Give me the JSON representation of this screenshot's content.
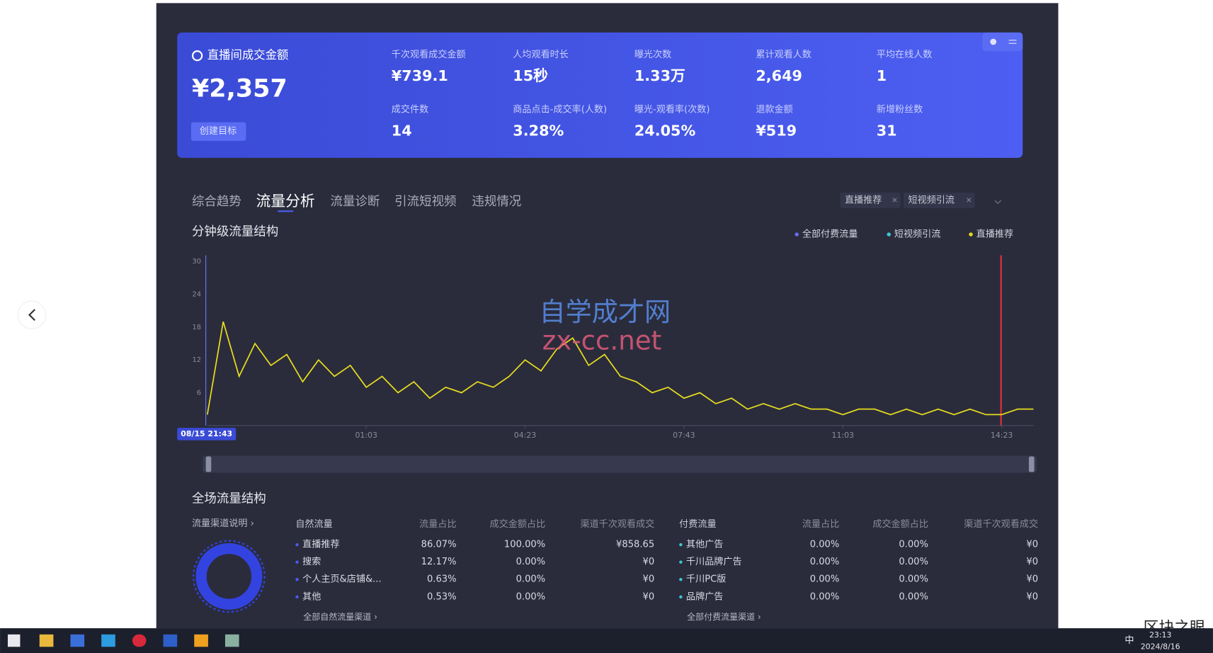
{
  "summary": {
    "title": "直播间成交金额",
    "value": "¥2,357",
    "button": "创建目标",
    "metrics": [
      {
        "label": "千次观看成交金额",
        "value": "¥739.1"
      },
      {
        "label": "人均观看时长",
        "value": "15秒"
      },
      {
        "label": "曝光次数",
        "value": "1.33万"
      },
      {
        "label": "累计观看人数",
        "value": "2,649"
      },
      {
        "label": "平均在线人数",
        "value": "1"
      },
      {
        "label": "成交件数",
        "value": "14"
      },
      {
        "label": "商品点击-成交率(人数)",
        "value": "3.28%"
      },
      {
        "label": "曝光-观看率(次数)",
        "value": "24.05%"
      },
      {
        "label": "退款金额",
        "value": "¥519"
      },
      {
        "label": "新增粉丝数",
        "value": "31"
      }
    ]
  },
  "tabs": [
    "综合趋势",
    "流量分析",
    "流量诊断",
    "引流短视频",
    "违规情况"
  ],
  "active_tab": 1,
  "filters": [
    "直播推荐",
    "短视频引流"
  ],
  "chart_data": {
    "type": "line",
    "title": "分钟级流量结构",
    "legend": [
      {
        "name": "全部付费流量",
        "color": "#6a6cf5"
      },
      {
        "name": "短视频引流",
        "color": "#3fc5d8"
      },
      {
        "name": "直播推荐",
        "color": "#e6dc1e"
      }
    ],
    "x": [
      0,
      20,
      40,
      60,
      80,
      100,
      120,
      140,
      160,
      180,
      200,
      220,
      240,
      260,
      280,
      300,
      320,
      340,
      360,
      380,
      400,
      420,
      440,
      460,
      480,
      500,
      520,
      540,
      560,
      580,
      600,
      620,
      640,
      660,
      680,
      700,
      720,
      740,
      760,
      780,
      800,
      820,
      840,
      860,
      880,
      900,
      920,
      940,
      960,
      980,
      1000,
      1020,
      1040
    ],
    "series": [
      {
        "name": "直播推荐",
        "color": "#e6dc1e",
        "values": [
          2,
          19,
          9,
          15,
          11,
          13,
          8,
          12,
          9,
          11,
          7,
          9,
          6,
          8,
          5,
          7,
          6,
          8,
          7,
          9,
          12,
          10,
          14,
          16,
          11,
          13,
          9,
          8,
          6,
          7,
          5,
          6,
          4,
          5,
          3,
          4,
          3,
          4,
          3,
          3,
          2,
          3,
          3,
          2,
          3,
          2,
          3,
          2,
          3,
          2,
          2,
          3,
          3
        ]
      }
    ],
    "xlim": [
      0,
      1040
    ],
    "xticks": [
      {
        "value": 0,
        "label": "08/15 21:43"
      },
      {
        "value": 200,
        "label": "01:03"
      },
      {
        "value": 400,
        "label": "04:23"
      },
      {
        "value": 600,
        "label": "07:43"
      },
      {
        "value": 800,
        "label": "11:03"
      },
      {
        "value": 1000,
        "label": "14:23"
      }
    ],
    "ylim": [
      0,
      30
    ],
    "yticks": [
      6,
      12,
      18,
      24,
      30
    ],
    "grid": false
  },
  "structure": {
    "title": "全场流量结构",
    "link": "流量渠道说明 ›",
    "natural": {
      "header": [
        "自然流量",
        "流量占比",
        "成交金额占比",
        "渠道千次观看成交"
      ],
      "rows": [
        [
          "直播推荐",
          "86.07%",
          "100.00%",
          "¥858.65"
        ],
        [
          "搜索",
          "12.17%",
          "0.00%",
          "¥0"
        ],
        [
          "个人主页&店铺&...",
          "0.63%",
          "0.00%",
          "¥0"
        ],
        [
          "其他",
          "0.53%",
          "0.00%",
          "¥0"
        ]
      ],
      "footer": "全部自然流量渠道 ›"
    },
    "paid": {
      "header": [
        "付费流量",
        "流量占比",
        "成交金额占比",
        "渠道千次观看成交"
      ],
      "rows": [
        [
          "其他广告",
          "0.00%",
          "0.00%",
          "¥0"
        ],
        [
          "千川品牌广告",
          "0.00%",
          "0.00%",
          "¥0"
        ],
        [
          "千川PC版",
          "0.00%",
          "0.00%",
          "¥0"
        ],
        [
          "品牌广告",
          "0.00%",
          "0.00%",
          "¥0"
        ]
      ],
      "footer": "全部付费流量渠道 ›"
    }
  },
  "watermark": [
    "自学成才网",
    "zx-cc.net",
    "区块之眼"
  ],
  "taskbar": {
    "ime": "中",
    "time": "23:13",
    "date": "2024/8/16"
  }
}
